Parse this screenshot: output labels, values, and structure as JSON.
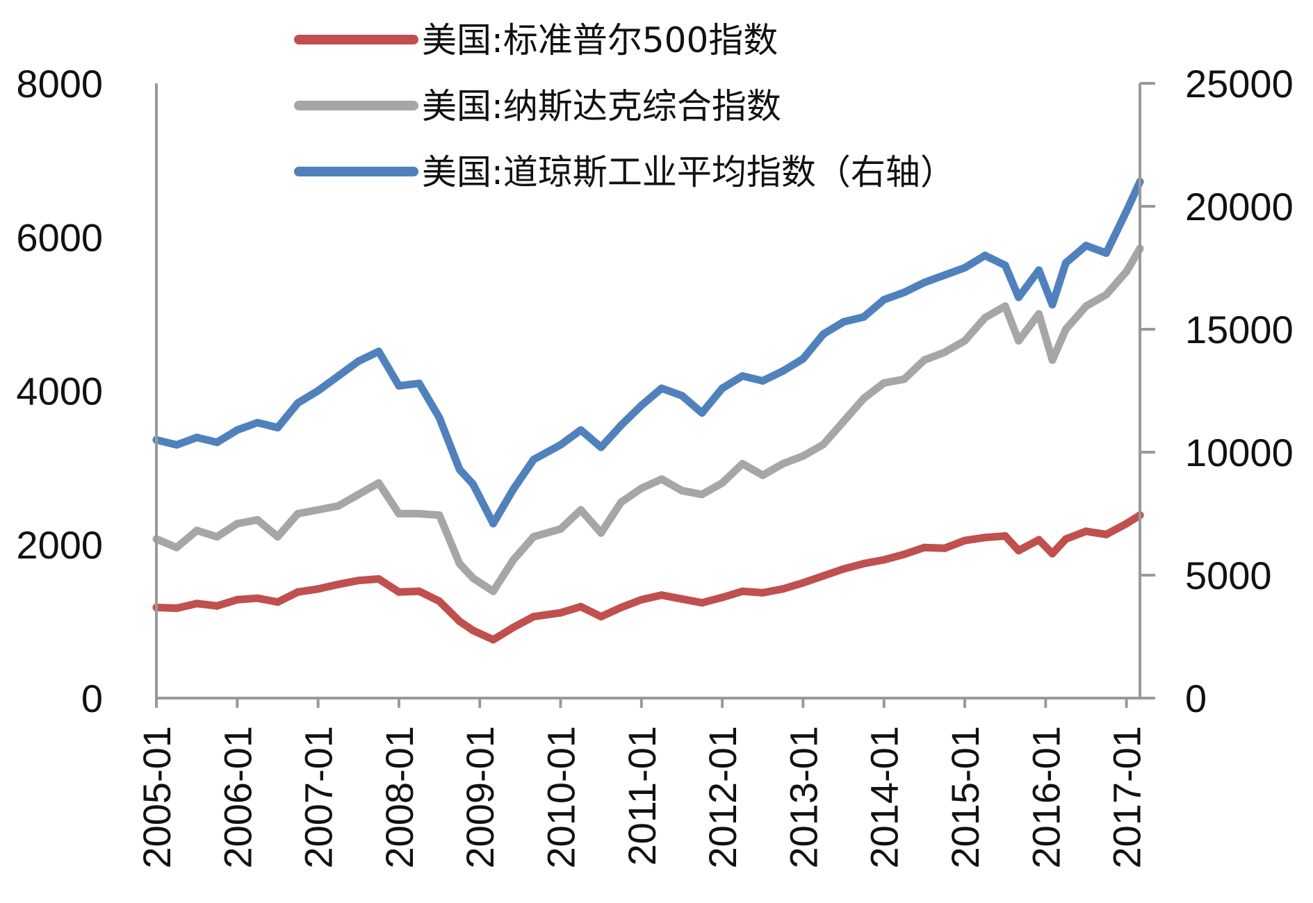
{
  "chart_data": {
    "type": "line",
    "title": "",
    "xlabel": "",
    "ylabel": "",
    "y2label": "",
    "ylim": [
      0,
      8000
    ],
    "y2lim": [
      0,
      25000
    ],
    "yticks": [
      "0",
      "2000",
      "4000",
      "6000",
      "8000"
    ],
    "y2ticks": [
      "0",
      "5000",
      "10000",
      "15000",
      "20000",
      "25000"
    ],
    "xticks": [
      "2005-01",
      "2006-01",
      "2007-01",
      "2008-01",
      "2009-01",
      "2010-01",
      "2011-01",
      "2012-01",
      "2013-01",
      "2014-01",
      "2015-01",
      "2016-01",
      "2017-01"
    ],
    "xlim": [
      "2005-01",
      "2017-03"
    ],
    "legend_position": "top-center",
    "grid": false,
    "series": [
      {
        "name": "美国:标准普尔500指数",
        "axis": "left",
        "color": "#C0504D",
        "x": [
          "2005-01",
          "2005-04",
          "2005-07",
          "2005-10",
          "2006-01",
          "2006-04",
          "2006-07",
          "2006-10",
          "2007-01",
          "2007-04",
          "2007-07",
          "2007-10",
          "2008-01",
          "2008-04",
          "2008-07",
          "2008-10",
          "2008-12",
          "2009-03",
          "2009-06",
          "2009-09",
          "2010-01",
          "2010-04",
          "2010-07",
          "2010-10",
          "2011-01",
          "2011-04",
          "2011-07",
          "2011-10",
          "2012-01",
          "2012-04",
          "2012-07",
          "2012-10",
          "2013-01",
          "2013-04",
          "2013-07",
          "2013-10",
          "2014-01",
          "2014-04",
          "2014-07",
          "2014-10",
          "2015-01",
          "2015-04",
          "2015-07",
          "2015-09",
          "2015-12",
          "2016-02",
          "2016-04",
          "2016-07",
          "2016-10",
          "2017-01",
          "2017-03"
        ],
        "values": [
          1180,
          1170,
          1230,
          1200,
          1280,
          1300,
          1250,
          1380,
          1420,
          1480,
          1530,
          1550,
          1380,
          1390,
          1260,
          1000,
          880,
          760,
          920,
          1060,
          1110,
          1190,
          1060,
          1180,
          1280,
          1340,
          1290,
          1240,
          1310,
          1390,
          1370,
          1420,
          1500,
          1590,
          1680,
          1750,
          1800,
          1870,
          1960,
          1950,
          2050,
          2090,
          2110,
          1920,
          2060,
          1880,
          2070,
          2170,
          2130,
          2270,
          2380
        ]
      },
      {
        "name": "美国:纳斯达克综合指数",
        "axis": "left",
        "color": "#A6A6A6",
        "x": [
          "2005-01",
          "2005-04",
          "2005-07",
          "2005-10",
          "2006-01",
          "2006-04",
          "2006-07",
          "2006-10",
          "2007-01",
          "2007-04",
          "2007-07",
          "2007-10",
          "2008-01",
          "2008-04",
          "2008-07",
          "2008-10",
          "2008-12",
          "2009-03",
          "2009-06",
          "2009-09",
          "2010-01",
          "2010-04",
          "2010-07",
          "2010-10",
          "2011-01",
          "2011-04",
          "2011-07",
          "2011-10",
          "2012-01",
          "2012-04",
          "2012-07",
          "2012-10",
          "2013-01",
          "2013-04",
          "2013-07",
          "2013-10",
          "2014-01",
          "2014-04",
          "2014-07",
          "2014-10",
          "2015-01",
          "2015-04",
          "2015-07",
          "2015-09",
          "2015-12",
          "2016-02",
          "2016-04",
          "2016-07",
          "2016-10",
          "2017-01",
          "2017-03"
        ],
        "values": [
          2070,
          1960,
          2180,
          2100,
          2270,
          2320,
          2100,
          2400,
          2450,
          2500,
          2650,
          2800,
          2400,
          2400,
          2380,
          1750,
          1560,
          1390,
          1800,
          2100,
          2200,
          2450,
          2150,
          2550,
          2730,
          2850,
          2700,
          2650,
          2800,
          3050,
          2900,
          3050,
          3150,
          3300,
          3600,
          3900,
          4100,
          4150,
          4400,
          4500,
          4650,
          4950,
          5100,
          4650,
          5000,
          4400,
          4800,
          5100,
          5250,
          5550,
          5850
        ]
      },
      {
        "name": "美国:道琼斯工业平均指数（右轴）",
        "axis": "right",
        "color": "#4F81BD",
        "x": [
          "2005-01",
          "2005-04",
          "2005-07",
          "2005-10",
          "2006-01",
          "2006-04",
          "2006-07",
          "2006-10",
          "2007-01",
          "2007-04",
          "2007-07",
          "2007-10",
          "2008-01",
          "2008-04",
          "2008-07",
          "2008-10",
          "2008-12",
          "2009-03",
          "2009-06",
          "2009-09",
          "2010-01",
          "2010-04",
          "2010-07",
          "2010-10",
          "2011-01",
          "2011-04",
          "2011-07",
          "2011-10",
          "2012-01",
          "2012-04",
          "2012-07",
          "2012-10",
          "2013-01",
          "2013-04",
          "2013-07",
          "2013-10",
          "2014-01",
          "2014-04",
          "2014-07",
          "2014-10",
          "2015-01",
          "2015-04",
          "2015-07",
          "2015-09",
          "2015-12",
          "2016-02",
          "2016-04",
          "2016-07",
          "2016-10",
          "2017-01",
          "2017-03"
        ],
        "values": [
          10500,
          10300,
          10600,
          10400,
          10900,
          11200,
          11000,
          12000,
          12500,
          13100,
          13700,
          14100,
          12700,
          12800,
          11400,
          9300,
          8700,
          7100,
          8500,
          9700,
          10300,
          10900,
          10200,
          11100,
          11900,
          12600,
          12300,
          11600,
          12600,
          13100,
          12900,
          13300,
          13800,
          14800,
          15300,
          15500,
          16200,
          16500,
          16900,
          17200,
          17500,
          18000,
          17600,
          16300,
          17400,
          16000,
          17700,
          18400,
          18100,
          19800,
          21000
        ]
      }
    ]
  }
}
